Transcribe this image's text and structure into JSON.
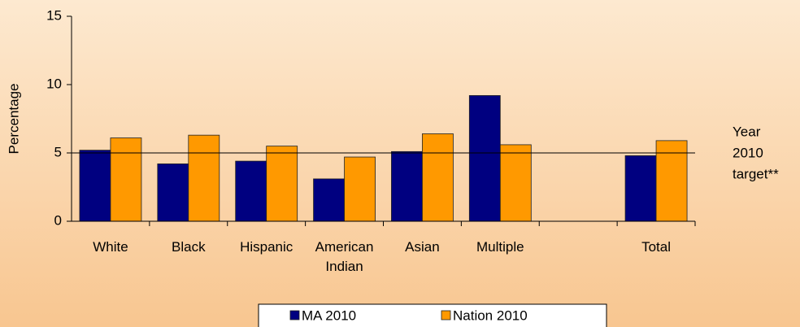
{
  "chart_data": {
    "type": "bar",
    "ylabel": "Percentage",
    "categories": [
      "White",
      "Black",
      "Hispanic",
      "American Indian",
      "Asian",
      "Multiple",
      null,
      "Total"
    ],
    "series": [
      {
        "name": "MA 2010",
        "color": "#000080",
        "values": [
          5.2,
          4.2,
          4.4,
          3.1,
          5.1,
          9.2,
          null,
          4.8
        ]
      },
      {
        "name": "Nation 2010",
        "color": "#ff9900",
        "values": [
          6.1,
          6.3,
          5.5,
          4.7,
          6.4,
          5.6,
          null,
          5.9
        ]
      }
    ],
    "target": {
      "value": 5,
      "label": [
        "Year",
        "2010",
        "target**"
      ]
    },
    "ylim": [
      0,
      15
    ],
    "yticks": [
      0,
      5,
      10,
      15
    ],
    "legend": "bottom"
  }
}
